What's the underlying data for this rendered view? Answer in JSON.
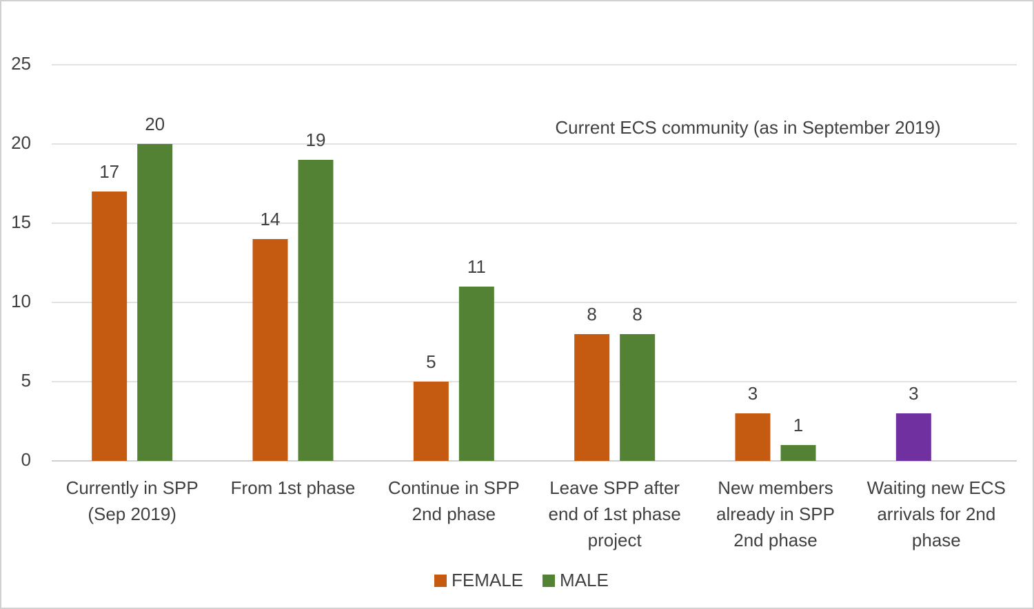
{
  "chart_data": {
    "type": "bar",
    "title": "Current ECS community (as in September 2019)",
    "categories": [
      "Currently in SPP\n(Sep 2019)",
      "From 1st phase",
      "Continue in SPP\n2nd phase",
      "Leave SPP after\nend of 1st phase\nproject",
      "New members\nalready in SPP\n2nd phase",
      "Waiting new ECS\narrivals for 2nd\nphase"
    ],
    "series": [
      {
        "name": "FEMALE",
        "color": "#c55a11",
        "values": [
          17,
          14,
          5,
          8,
          3,
          3
        ],
        "colors": [
          "#c55a11",
          "#c55a11",
          "#c55a11",
          "#c55a11",
          "#c55a11",
          "#7030a0"
        ]
      },
      {
        "name": "MALE",
        "color": "#548235",
        "values": [
          20,
          19,
          11,
          8,
          1,
          null
        ]
      }
    ],
    "ylim": [
      0,
      25
    ],
    "yticks": [
      0,
      5,
      10,
      15,
      20,
      25
    ],
    "grid": true,
    "legend": "bottom"
  }
}
